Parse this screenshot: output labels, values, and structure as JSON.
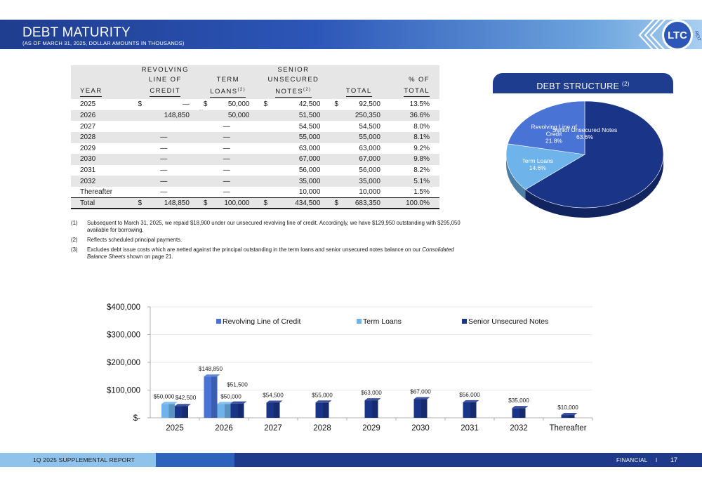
{
  "header": {
    "title": "DEBT MATURITY",
    "subtitle": "(AS OF MARCH 31, 2025, DOLLAR AMOUNTS IN THOUSANDS)",
    "logo_text": "LTC",
    "logo_subtext": "REIT"
  },
  "table": {
    "headers": {
      "year": "YEAR",
      "revolving_1": "REVOLVING",
      "revolving_2": "LINE OF",
      "revolving_3": "CREDIT",
      "term_1": "TERM",
      "term_2": "LOANS",
      "term_sup": "(2)",
      "senior_1": "SENIOR",
      "senior_2": "UNSECURED",
      "senior_3": "NOTES",
      "senior_sup": "(2)",
      "total": "TOTAL",
      "pct_1": "% OF",
      "pct_2": "TOTAL"
    },
    "currency": "$",
    "rows": [
      {
        "year": "2025",
        "revolving": "—",
        "term": "50,000",
        "senior": "42,500",
        "total": "92,500",
        "pct": "13.5%"
      },
      {
        "year": "2026",
        "revolving": "148,850",
        "revolving_note": "(1)",
        "term": "50,000",
        "senior": "51,500",
        "total": "250,350",
        "pct": "36.6%"
      },
      {
        "year": "2027",
        "revolving": "",
        "term": "—",
        "senior": "54,500",
        "total": "54,500",
        "pct": "8.0%"
      },
      {
        "year": "2028",
        "revolving": "—",
        "term": "—",
        "senior": "55,000",
        "total": "55,000",
        "pct": "8.1%"
      },
      {
        "year": "2029",
        "revolving": "—",
        "term": "—",
        "senior": "63,000",
        "total": "63,000",
        "pct": "9.2%"
      },
      {
        "year": "2030",
        "revolving": "—",
        "term": "—",
        "senior": "67,000",
        "total": "67,000",
        "pct": "9.8%"
      },
      {
        "year": "2031",
        "revolving": "—",
        "term": "—",
        "senior": "56,000",
        "total": "56,000",
        "pct": "8.2%"
      },
      {
        "year": "2032",
        "revolving": "—",
        "term": "—",
        "senior": "35,000",
        "total": "35,000",
        "pct": "5.1%"
      },
      {
        "year": "Thereafter",
        "revolving": "—",
        "term": "—",
        "senior": "10,000",
        "total": "10,000",
        "pct": "1.5%"
      }
    ],
    "total_row": {
      "label": "Total",
      "revolving": "148,850",
      "term": "100,000",
      "term_note": "(3)",
      "senior": "434,500",
      "senior_note": "(3)",
      "total": "683,350",
      "pct": "100.0%"
    }
  },
  "footnotes": [
    {
      "num": "(1)",
      "text": "Subsequent to March 31, 2025, we repaid $18,900 under our unsecured revolving line of credit.  Accordingly, we have $129,950 outstanding with $295,050 available for borrowing."
    },
    {
      "num": "(2)",
      "text": "Reflects scheduled principal payments."
    },
    {
      "num": "(3)",
      "text_before": "Excludes debt issue costs which are netted against the principal outstanding in the term loans and senior unsecured notes balance on our ",
      "text_italic": "Consolidated Balance Sheets",
      "text_after": " shown on page 21."
    }
  ],
  "debt_structure": {
    "title": "DEBT STRUCTURE",
    "title_sup": "(2)"
  },
  "colors": {
    "revolving": "#4a73d6",
    "term": "#6eb4ea",
    "senior": "#1a3488",
    "header_dark": "#1f3d8f"
  },
  "chart_data": [
    {
      "type": "pie",
      "slices": [
        {
          "label_lines": [
            "Senior Unsecured Notes"
          ],
          "pct_label": "63.6%",
          "value": 63.6,
          "color": "#1a3488"
        },
        {
          "label_lines": [
            "Term Loans"
          ],
          "pct_label": "14.6%",
          "value": 14.6,
          "color": "#6eb4ea"
        },
        {
          "label_lines": [
            "Revolving Line of",
            "Credit"
          ],
          "pct_label": "21.8%",
          "value": 21.8,
          "color": "#4a73d6"
        }
      ]
    },
    {
      "type": "bar",
      "categories": [
        "2025",
        "2026",
        "2027",
        "2028",
        "2029",
        "2030",
        "2031",
        "2032",
        "Thereafter"
      ],
      "series": [
        {
          "name": "Revolving Line of Credit",
          "color": "#4a73d6",
          "values": [
            0,
            148850,
            0,
            0,
            0,
            0,
            0,
            0,
            0
          ],
          "labels": [
            "",
            "$148,850",
            "",
            "",
            "",
            "",
            "",
            "",
            ""
          ]
        },
        {
          "name": "Term Loans",
          "color": "#6eb4ea",
          "values": [
            50000,
            50000,
            0,
            0,
            0,
            0,
            0,
            0,
            0
          ],
          "labels": [
            "$50,000",
            "$50,000",
            "",
            "",
            "",
            "",
            "",
            "",
            ""
          ]
        },
        {
          "name": "Senior Unsecured Notes",
          "color": "#1a3488",
          "values": [
            42500,
            51500,
            54500,
            55000,
            63000,
            67000,
            56000,
            35000,
            10000
          ],
          "labels": [
            "$42,500",
            "$51,500",
            "$54,500",
            "$55,000",
            "$63,000",
            "$67,000",
            "$56,000",
            "$35,000",
            "$10,000"
          ]
        }
      ],
      "y_ticks": [
        0,
        100000,
        200000,
        300000,
        400000
      ],
      "y_tick_labels": [
        "$-",
        "$100,000",
        "$200,000",
        "$300,000",
        "$400,000"
      ],
      "ylim": [
        0,
        400000
      ],
      "grid": true,
      "legend": "top"
    }
  ],
  "footer": {
    "report": "1Q 2025 SUPPLEMENTAL REPORT",
    "section": "FINANCIAL",
    "separator": "I",
    "page": "17"
  }
}
